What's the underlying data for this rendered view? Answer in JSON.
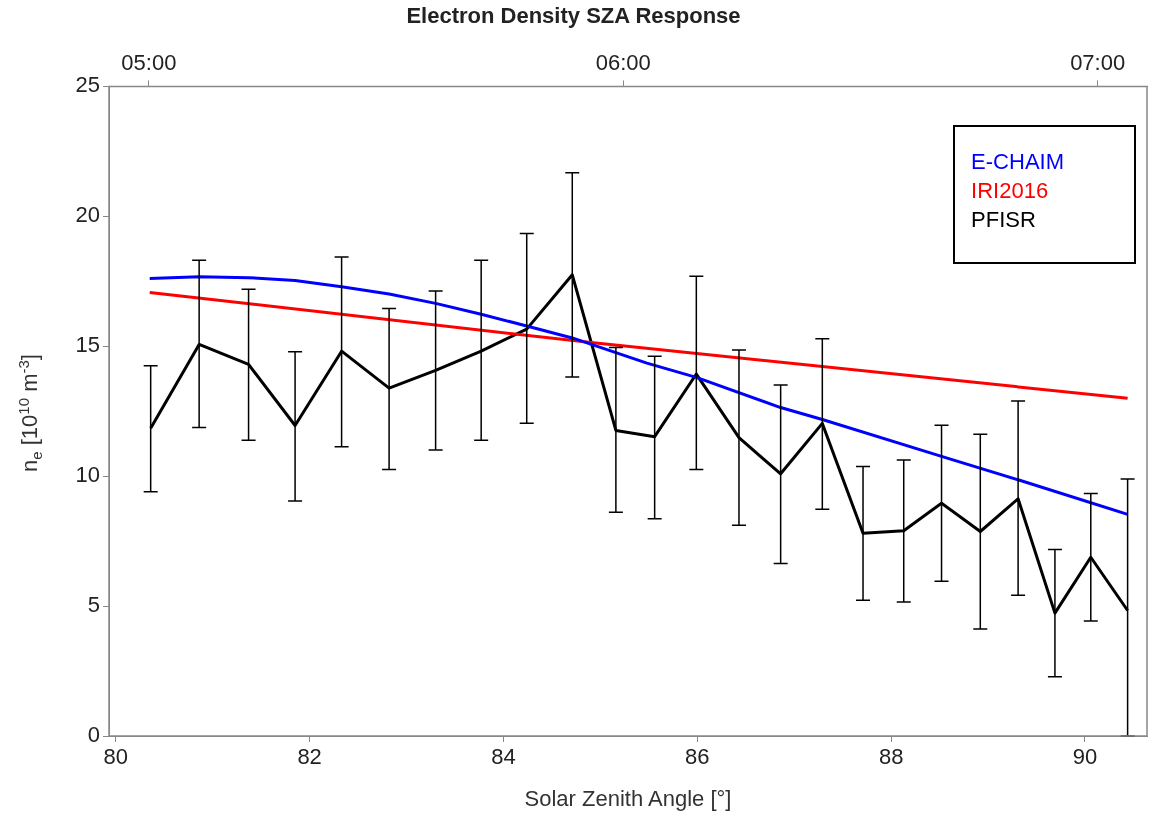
{
  "chart_data": {
    "type": "line",
    "title": "Electron Density SZA Response",
    "xlabel": "Solar Zenith Angle [°]",
    "ylabel": "n$_{e}$ [10$^{10}$ m$^{-3}$]",
    "xlim": [
      79.93,
      90.64
    ],
    "xticks": [
      80,
      82,
      84,
      86,
      88,
      90
    ],
    "x2lim": [
      4.916,
      7.104
    ],
    "x2ticks": [
      {
        "value": 5,
        "label": "05:00"
      },
      {
        "value": 6,
        "label": "06:00"
      },
      {
        "value": 7,
        "label": "07:00"
      }
    ],
    "ylim": [
      0,
      25
    ],
    "yticks": [
      0,
      5,
      10,
      15,
      20,
      25
    ],
    "grid": false,
    "legend": "top right",
    "marker": "none",
    "line_style": "solid",
    "series": [
      {
        "name": "E-CHAIM",
        "color": "#0000ff",
        "x": [
          80.35,
          80.86,
          81.37,
          81.85,
          82.33,
          82.82,
          83.3,
          83.77,
          84.24,
          84.71,
          85.48,
          85.99,
          86.86,
          87.29,
          88.52,
          89.31,
          90.44
        ],
        "values": [
          17.61,
          17.67,
          17.64,
          17.53,
          17.29,
          17.01,
          16.65,
          16.23,
          15.78,
          15.32,
          14.35,
          13.8,
          12.64,
          12.18,
          10.76,
          9.86,
          8.53
        ]
      },
      {
        "name": "IRI2016",
        "color": "#ff0000",
        "x": [
          80.35,
          84.88,
          90.44
        ],
        "values": [
          17.07,
          15.15,
          13.0
        ]
      },
      {
        "name": "PFISR",
        "color": "#000000",
        "x": [
          80.36,
          80.86,
          81.37,
          81.85,
          82.33,
          82.82,
          83.3,
          83.77,
          84.24,
          84.71,
          85.16,
          85.56,
          85.99,
          86.43,
          86.86,
          87.29,
          87.71,
          88.13,
          88.52,
          88.92,
          89.31,
          89.69,
          90.06,
          90.44
        ],
        "values": [
          11.84,
          15.07,
          14.3,
          11.95,
          14.81,
          13.39,
          14.07,
          14.81,
          15.66,
          17.75,
          11.76,
          11.52,
          13.93,
          11.48,
          10.09,
          12.03,
          7.8,
          7.9,
          8.96,
          7.87,
          9.13,
          4.73,
          6.88,
          4.83
        ],
        "errors": [
          [
            9.4,
            14.25
          ],
          [
            11.87,
            18.31
          ],
          [
            11.38,
            17.19
          ],
          [
            9.04,
            14.79
          ],
          [
            11.13,
            18.43
          ],
          [
            10.26,
            16.45
          ],
          [
            11.01,
            17.13
          ],
          [
            11.38,
            18.31
          ],
          [
            12.04,
            19.34
          ],
          [
            13.82,
            21.68
          ],
          [
            8.61,
            14.95
          ],
          [
            8.36,
            14.61
          ],
          [
            10.26,
            17.69
          ],
          [
            8.11,
            14.86
          ],
          [
            6.64,
            13.51
          ],
          [
            8.73,
            15.29
          ],
          [
            5.22,
            10.37
          ],
          [
            5.16,
            10.62
          ],
          [
            5.96,
            11.96
          ],
          [
            4.12,
            11.61
          ],
          [
            5.42,
            12.89
          ],
          [
            2.28,
            7.18
          ],
          [
            4.43,
            9.33
          ],
          [
            0,
            9.89
          ]
        ]
      }
    ]
  }
}
